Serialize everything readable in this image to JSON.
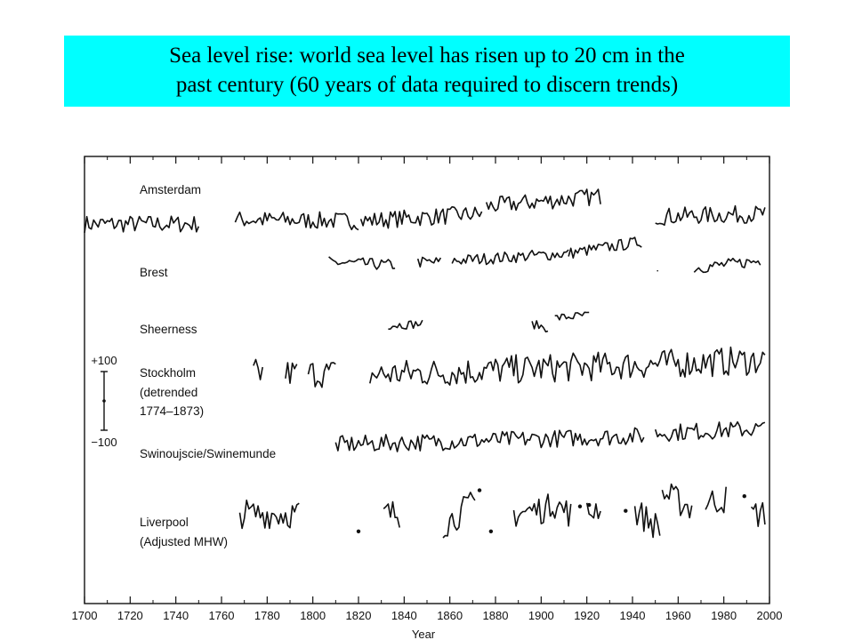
{
  "banner": {
    "line1": "Sea level rise: world sea level has risen up to 20 cm in the",
    "line2": "past century  (60 years of data required to discern trends)"
  },
  "chart_data": {
    "type": "line",
    "xlabel": "Year",
    "ylabel": "",
    "title": "",
    "xlim": [
      1700,
      2000
    ],
    "xticks": [
      1700,
      1720,
      1740,
      1760,
      1780,
      1800,
      1820,
      1840,
      1860,
      1880,
      1900,
      1920,
      1940,
      1960,
      1980,
      2000
    ],
    "grid": false,
    "scale_bar": {
      "top_label": "+100",
      "bottom_label": "−100",
      "units_span": 200
    },
    "colors": {
      "line": "#111111",
      "banner": "#00ffff"
    },
    "series": [
      {
        "name": "Amsterdam",
        "label_lines": [
          "Amsterdam"
        ],
        "baseline": 0,
        "amplitude": 60,
        "segments": [
          {
            "x": [
              1700,
              1750
            ],
            "trend": [
              0,
              0
            ]
          },
          {
            "x": [
              1766,
              1820
            ],
            "trend": [
              15,
              10
            ]
          },
          {
            "x": [
              1821,
              1874
            ],
            "trend": [
              10,
              35
            ]
          },
          {
            "x": [
              1876,
              1926
            ],
            "trend": [
              60,
              95
            ]
          },
          {
            "x": [
              1950,
              1998
            ],
            "trend": [
              25,
              35
            ]
          }
        ]
      },
      {
        "name": "Brest",
        "label_lines": [
          "Brest"
        ],
        "baseline": 0,
        "amplitude": 40,
        "segments": [
          {
            "x": [
              1807,
              1836
            ],
            "trend": [
              0,
              -10
            ]
          },
          {
            "x": [
              1846,
              1856
            ],
            "trend": [
              0,
              0
            ]
          },
          {
            "x": [
              1861,
              1912
            ],
            "trend": [
              5,
              30
            ]
          },
          {
            "x": [
              1912,
              1944
            ],
            "trend": [
              30,
              70
            ]
          },
          {
            "x": [
              1951,
              1951
            ],
            "trend": [
              -30,
              -30
            ]
          },
          {
            "x": [
              1967,
              1996
            ],
            "trend": [
              -20,
              5
            ]
          }
        ]
      },
      {
        "name": "Sheerness",
        "label_lines": [
          "Sheerness"
        ],
        "baseline": 0,
        "amplitude": 30,
        "segments": [
          {
            "x": [
              1833,
              1848
            ],
            "trend": [
              0,
              5
            ]
          },
          {
            "x": [
              1896,
              1903
            ],
            "trend": [
              5,
              -10
            ]
          },
          {
            "x": [
              1906,
              1921
            ],
            "trend": [
              25,
              35
            ]
          }
        ]
      },
      {
        "name": "Stockholm",
        "label_lines": [
          "Stockholm",
          "(detrended",
          "1774–1873)"
        ],
        "baseline": 0,
        "amplitude": 100,
        "segments": [
          {
            "x": [
              1774,
              1778
            ],
            "trend": [
              0,
              0
            ]
          },
          {
            "x": [
              1788,
              1793
            ],
            "trend": [
              0,
              0
            ]
          },
          {
            "x": [
              1798,
              1810
            ],
            "trend": [
              0,
              0
            ]
          },
          {
            "x": [
              1825,
              1998
            ],
            "trend": [
              -5,
              45
            ]
          }
        ]
      },
      {
        "name": "Swinoujscie/Swinemunde",
        "label_lines": [
          "Swinoujscie/Swinemunde"
        ],
        "baseline": 0,
        "amplitude": 60,
        "segments": [
          {
            "x": [
              1810,
              1945
            ],
            "trend": [
              -10,
              20
            ]
          },
          {
            "x": [
              1950,
              1998
            ],
            "trend": [
              30,
              45
            ]
          }
        ]
      },
      {
        "name": "Liverpool",
        "label_lines": [
          "Liverpool",
          "(Adjusted MHW)"
        ],
        "baseline": 0,
        "amplitude": 100,
        "segments": [
          {
            "x": [
              1768,
              1794
            ],
            "trend": [
              0,
              0
            ]
          },
          {
            "x": [
              1831,
              1838
            ],
            "trend": [
              0,
              0
            ]
          },
          {
            "x": [
              1857,
              1871
            ],
            "trend": [
              -40,
              40
            ]
          },
          {
            "x": [
              1888,
              1904
            ],
            "trend": [
              0,
              20
            ]
          },
          {
            "x": [
              1904,
              1913
            ],
            "trend": [
              40,
              0
            ]
          },
          {
            "x": [
              1920,
              1926
            ],
            "trend": [
              0,
              30
            ]
          },
          {
            "x": [
              1941,
              1952
            ],
            "trend": [
              10,
              -50
            ]
          },
          {
            "x": [
              1953,
              1966
            ],
            "trend": [
              70,
              20
            ]
          },
          {
            "x": [
              1972,
              1981
            ],
            "trend": [
              40,
              50
            ]
          },
          {
            "x": [
              1992,
              1998
            ],
            "trend": [
              0,
              0
            ]
          }
        ],
        "points": [
          {
            "x": 1820,
            "y": -60
          },
          {
            "x": 1873,
            "y": 80
          },
          {
            "x": 1878,
            "y": -60
          },
          {
            "x": 1917,
            "y": 25
          },
          {
            "x": 1921,
            "y": 30
          },
          {
            "x": 1937,
            "y": 10
          },
          {
            "x": 1989,
            "y": 60
          }
        ]
      }
    ]
  }
}
